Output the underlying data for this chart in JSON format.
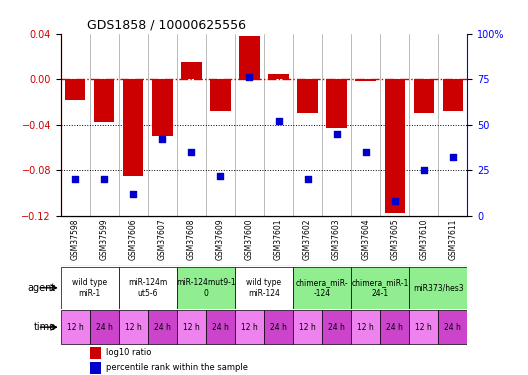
{
  "title": "GDS1858 / 10000625556",
  "samples": [
    "GSM37598",
    "GSM37599",
    "GSM37606",
    "GSM37607",
    "GSM37608",
    "GSM37609",
    "GSM37600",
    "GSM37601",
    "GSM37602",
    "GSM37603",
    "GSM37604",
    "GSM37605",
    "GSM37610",
    "GSM37611"
  ],
  "log10_ratio": [
    -0.018,
    -0.038,
    -0.085,
    -0.05,
    0.015,
    -0.028,
    0.038,
    0.005,
    -0.03,
    -0.043,
    -0.002,
    -0.118,
    -0.03,
    -0.028
  ],
  "percentile_rank": [
    20,
    20,
    12,
    42,
    35,
    22,
    76,
    52,
    20,
    45,
    35,
    8,
    25,
    32
  ],
  "agents": [
    {
      "label": "wild type\nmiR-1",
      "cols": [
        0,
        1
      ],
      "color": "#ffffff"
    },
    {
      "label": "miR-124m\nut5-6",
      "cols": [
        2,
        3
      ],
      "color": "#ffffff"
    },
    {
      "label": "miR-124mut9-1\n0",
      "cols": [
        4,
        5
      ],
      "color": "#90ee90"
    },
    {
      "label": "wild type\nmiR-124",
      "cols": [
        6,
        7
      ],
      "color": "#ffffff"
    },
    {
      "label": "chimera_miR-\n-124",
      "cols": [
        8,
        9
      ],
      "color": "#90ee90"
    },
    {
      "label": "chimera_miR-1\n24-1",
      "cols": [
        10,
        11
      ],
      "color": "#90ee90"
    },
    {
      "label": "miR373/hes3",
      "cols": [
        12,
        13
      ],
      "color": "#90ee90"
    }
  ],
  "times": [
    "12 h",
    "24 h",
    "12 h",
    "24 h",
    "12 h",
    "24 h",
    "12 h",
    "24 h",
    "12 h",
    "24 h",
    "12 h",
    "24 h",
    "12 h",
    "24 h"
  ],
  "ylim_left": [
    -0.12,
    0.04
  ],
  "ylim_right": [
    0,
    100
  ],
  "yticks_left": [
    -0.12,
    -0.08,
    -0.04,
    0.0,
    0.04
  ],
  "yticks_right": [
    0,
    25,
    50,
    75,
    100
  ],
  "bar_color": "#cc0000",
  "dot_color": "#0000cc",
  "hline_color": "#cc0000",
  "grid_color": "#000000",
  "background_color": "#ffffff",
  "sample_bg_color": "#cccccc",
  "agent_bg_white": "#ffffff",
  "agent_bg_green": "#90ee90",
  "time_bg_color": "#ee82ee",
  "time_bg_dark": "#cc44cc"
}
